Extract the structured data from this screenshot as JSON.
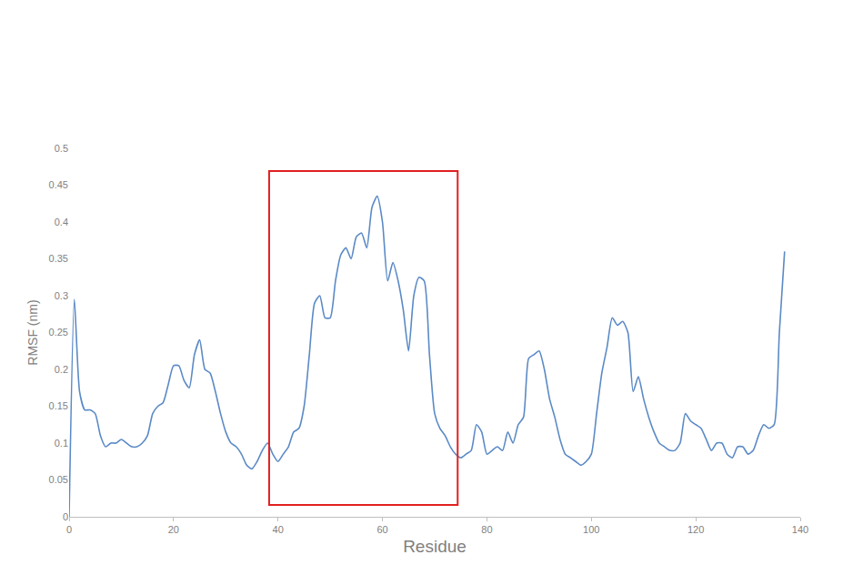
{
  "chart_data": {
    "type": "line",
    "x_label": "Residue",
    "y_label": "RMSF (nm)",
    "x": [
      0,
      1,
      2,
      3,
      4,
      5,
      6,
      7,
      8,
      9,
      10,
      11,
      12,
      13,
      14,
      15,
      16,
      17,
      18,
      19,
      20,
      21,
      22,
      23,
      24,
      25,
      26,
      27,
      28,
      29,
      30,
      31,
      32,
      33,
      34,
      35,
      36,
      37,
      38,
      39,
      40,
      41,
      42,
      43,
      44,
      45,
      46,
      47,
      48,
      49,
      50,
      51,
      52,
      53,
      54,
      55,
      56,
      57,
      58,
      59,
      60,
      61,
      62,
      63,
      64,
      65,
      66,
      67,
      68,
      69,
      70,
      71,
      72,
      73,
      74,
      75,
      76,
      77,
      78,
      79,
      80,
      81,
      82,
      83,
      84,
      85,
      86,
      87,
      88,
      89,
      90,
      91,
      92,
      93,
      94,
      95,
      96,
      97,
      98,
      99,
      100,
      101,
      102,
      103,
      104,
      105,
      106,
      107,
      108,
      109,
      110,
      111,
      112,
      113,
      114,
      115,
      116,
      117,
      118,
      119,
      120,
      121,
      122,
      123,
      124,
      125,
      126,
      127,
      128,
      129,
      130,
      131,
      132,
      133,
      134,
      135,
      136,
      137
    ],
    "values": [
      0.0,
      0.295,
      0.17,
      0.145,
      0.145,
      0.14,
      0.11,
      0.095,
      0.1,
      0.1,
      0.105,
      0.1,
      0.095,
      0.095,
      0.1,
      0.11,
      0.14,
      0.15,
      0.155,
      0.18,
      0.205,
      0.205,
      0.185,
      0.175,
      0.22,
      0.24,
      0.2,
      0.195,
      0.17,
      0.14,
      0.115,
      0.1,
      0.095,
      0.085,
      0.07,
      0.065,
      0.075,
      0.09,
      0.1,
      0.085,
      0.075,
      0.085,
      0.095,
      0.115,
      0.12,
      0.15,
      0.22,
      0.29,
      0.3,
      0.27,
      0.27,
      0.32,
      0.355,
      0.365,
      0.35,
      0.38,
      0.385,
      0.365,
      0.42,
      0.435,
      0.4,
      0.32,
      0.345,
      0.32,
      0.28,
      0.225,
      0.3,
      0.325,
      0.32,
      0.22,
      0.14,
      0.12,
      0.11,
      0.095,
      0.085,
      0.08,
      0.085,
      0.09,
      0.125,
      0.115,
      0.085,
      0.09,
      0.095,
      0.09,
      0.115,
      0.1,
      0.125,
      0.135,
      0.215,
      0.22,
      0.225,
      0.2,
      0.16,
      0.135,
      0.105,
      0.085,
      0.08,
      0.075,
      0.07,
      0.075,
      0.085,
      0.14,
      0.195,
      0.23,
      0.27,
      0.26,
      0.265,
      0.25,
      0.17,
      0.19,
      0.16,
      0.135,
      0.115,
      0.1,
      0.095,
      0.09,
      0.09,
      0.1,
      0.14,
      0.13,
      0.125,
      0.12,
      0.105,
      0.09,
      0.1,
      0.1,
      0.085,
      0.08,
      0.095,
      0.095,
      0.085,
      0.09,
      0.11,
      0.125,
      0.12,
      0.125,
      0.25,
      0.36
    ],
    "color": "#5b8ac6",
    "xlim": [
      0,
      140
    ],
    "xticks": [
      0,
      20,
      40,
      60,
      80,
      100,
      120,
      140
    ],
    "ylim": [
      0,
      0.5
    ],
    "yticks": [
      0,
      0.05,
      0.1,
      0.15,
      0.2,
      0.25,
      0.3,
      0.35,
      0.4,
      0.45,
      0.5
    ],
    "grid": false,
    "highlight": {
      "x": [
        38.3,
        74.4
      ],
      "y": [
        0.016,
        0.469
      ],
      "color": "#e02020"
    }
  }
}
